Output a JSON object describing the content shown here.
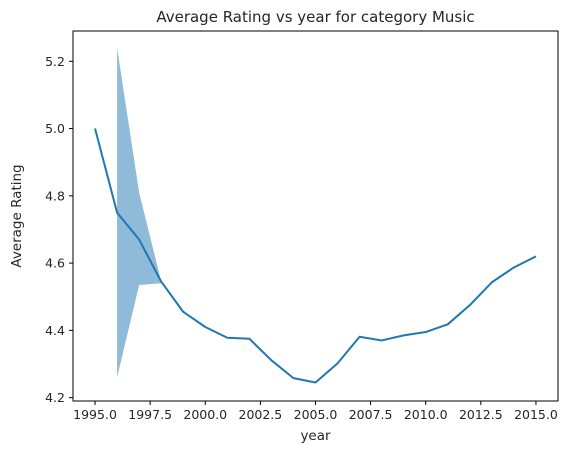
{
  "chart_data": {
    "type": "line",
    "title": "Average Rating vs year for category Music",
    "xlabel": "year",
    "ylabel": "Average Rating",
    "xlim": [
      1994.0,
      2016.0
    ],
    "ylim": [
      4.19,
      5.29
    ],
    "xticks": [
      1995.0,
      1997.5,
      2000.0,
      2002.5,
      2005.0,
      2007.5,
      2010.0,
      2012.5,
      2015.0
    ],
    "xtick_labels": [
      "1995.0",
      "1997.5",
      "2000.0",
      "2002.5",
      "2005.0",
      "2007.5",
      "2010.0",
      "2012.5",
      "2015.0"
    ],
    "yticks": [
      4.2,
      4.4,
      4.6,
      4.8,
      5.0,
      5.2
    ],
    "ytick_labels": [
      "4.2",
      "4.4",
      "4.6",
      "4.8",
      "5.0",
      "5.2"
    ],
    "grid": false,
    "series": [
      {
        "color": "#1f77b4",
        "band_color": "#1f77b4",
        "x": [
          1995,
          1996,
          1997,
          1998,
          1999,
          2000,
          2001,
          2002,
          2003,
          2004,
          2005,
          2006,
          2007,
          2008,
          2009,
          2010,
          2011,
          2012,
          2013,
          2014,
          2015
        ],
        "y": [
          5.0,
          4.75,
          4.67,
          4.545,
          4.455,
          4.41,
          4.378,
          4.375,
          4.311,
          4.258,
          4.245,
          4.302,
          4.381,
          4.37,
          4.385,
          4.395,
          4.418,
          4.475,
          4.543,
          4.587,
          4.62
        ],
        "band_x": [
          1996,
          1997,
          1998
        ],
        "band_lower": [
          4.26,
          4.535,
          4.54
        ],
        "band_upper": [
          5.24,
          4.81,
          4.545
        ]
      }
    ]
  }
}
